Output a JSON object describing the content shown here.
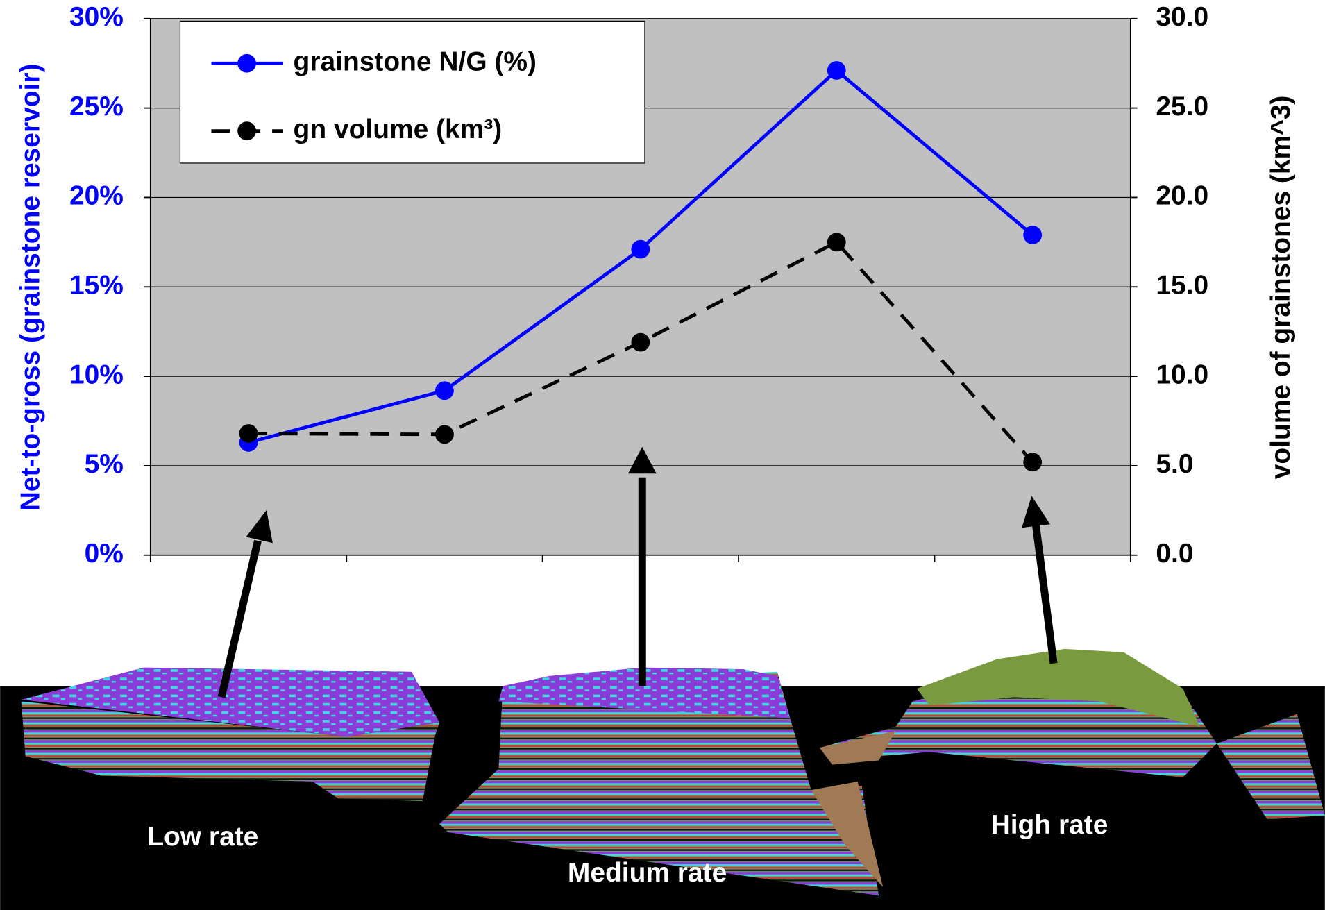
{
  "chart_data": {
    "type": "line",
    "categories": [
      null,
      null,
      null,
      null,
      null
    ],
    "series": [
      {
        "name": "grainstone N/G (%)",
        "color": "#0000ff",
        "values": [
          6.3,
          9.2,
          17.1,
          27.1,
          17.9
        ]
      },
      {
        "name": "gn volume (km³)",
        "color": "#000000",
        "axis": "y2",
        "values": [
          6.8,
          6.75,
          11.9,
          17.5,
          5.2
        ]
      }
    ],
    "ylabel": "Net-to-gross (grainstone reservoir)",
    "y2label": "volume of grainstones (km^3)",
    "ylim": [
      0,
      30
    ],
    "yticks": [
      {
        "value": 0,
        "label": "0%"
      },
      {
        "value": 5,
        "label": "5%"
      },
      {
        "value": 10,
        "label": "10%"
      },
      {
        "value": 15,
        "label": "15%"
      },
      {
        "value": 20,
        "label": "20%"
      },
      {
        "value": 25,
        "label": "25%"
      },
      {
        "value": 30,
        "label": "30%"
      }
    ],
    "y2lim": [
      0,
      30
    ],
    "y2ticks": [
      {
        "value": 0,
        "label": "0.0"
      },
      {
        "value": 5,
        "label": "5.0"
      },
      {
        "value": 10,
        "label": "10.0"
      },
      {
        "value": 15,
        "label": "15.0"
      },
      {
        "value": 20,
        "label": "20.0"
      },
      {
        "value": 25,
        "label": "25.0"
      },
      {
        "value": 30,
        "label": "30.0"
      }
    ],
    "grid": true,
    "legend": "upper left",
    "annotations": [
      "Low rate",
      "Medium rate",
      "High rate"
    ]
  }
}
